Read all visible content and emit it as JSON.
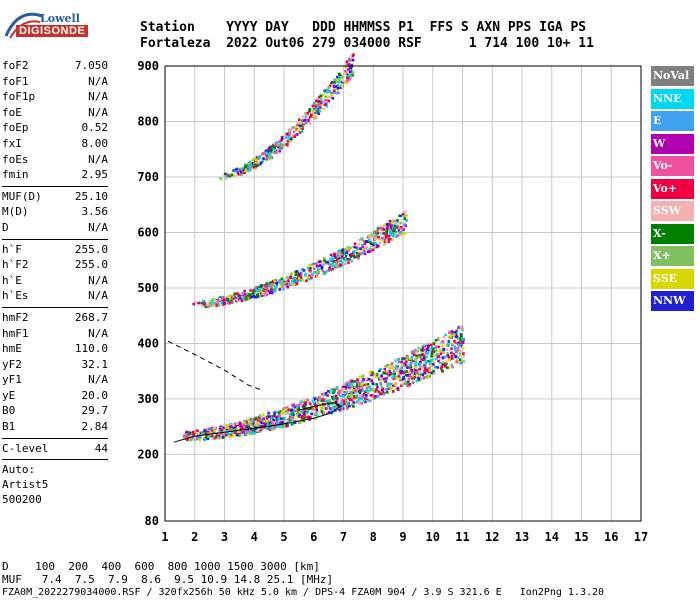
{
  "logo": {
    "line1": "Lowell",
    "line2": "DIGISONDE"
  },
  "header": {
    "line1": "Station    YYYY DAY   DDD HHMMSS P1  FFS S AXN PPS IGA PS",
    "line2": "Fortaleza  2022 Out06 279 034000 RSF      1 714 100 10+ 11"
  },
  "params": {
    "group1": [
      {
        "name": "foF2",
        "value": "7.050"
      },
      {
        "name": "foF1",
        "value": "N/A"
      },
      {
        "name": "foF1p",
        "value": "N/A"
      },
      {
        "name": "foE",
        "value": "N/A"
      },
      {
        "name": "foEp",
        "value": "0.52"
      },
      {
        "name": "fxI",
        "value": "8.00"
      },
      {
        "name": "foEs",
        "value": "N/A"
      },
      {
        "name": "fmin",
        "value": "2.95"
      }
    ],
    "group2": [
      {
        "name": "MUF(D)",
        "value": "25.10"
      },
      {
        "name": "M(D)",
        "value": "3.56"
      },
      {
        "name": "D",
        "value": "N/A"
      }
    ],
    "group3": [
      {
        "name": "h`F",
        "value": "255.0"
      },
      {
        "name": "h`F2",
        "value": "255.0"
      },
      {
        "name": "h`E",
        "value": "N/A"
      },
      {
        "name": "h`Es",
        "value": "N/A"
      }
    ],
    "group4": [
      {
        "name": "hmF2",
        "value": "268.7"
      },
      {
        "name": "hmF1",
        "value": "N/A"
      },
      {
        "name": "hmE",
        "value": "110.0"
      },
      {
        "name": "yF2",
        "value": "32.1"
      },
      {
        "name": "yF1",
        "value": "N/A"
      },
      {
        "name": "yE",
        "value": "20.0"
      },
      {
        "name": "B0",
        "value": "29.7"
      },
      {
        "name": "B1",
        "value": "2.84"
      }
    ],
    "clevel": {
      "name": "C-level",
      "value": "44"
    },
    "auto": [
      "Auto:",
      "Artist5",
      "500200"
    ]
  },
  "legend": [
    {
      "label": "NoVal",
      "color": "#808080"
    },
    {
      "label": "NNE",
      "color": "#00d8f0"
    },
    {
      "label": "E",
      "color": "#3fa0f0"
    },
    {
      "label": "W",
      "color": "#b000b0"
    },
    {
      "label": "Vo-",
      "color": "#f050a0"
    },
    {
      "label": "Vo+",
      "color": "#f00040"
    },
    {
      "label": "SSW",
      "color": "#f4b0b0"
    },
    {
      "label": "X-",
      "color": "#008000"
    },
    {
      "label": "X+",
      "color": "#80c060"
    },
    {
      "label": "SSE",
      "color": "#d8d800"
    },
    {
      "label": "NNW",
      "color": "#2020d0"
    }
  ],
  "footer": {
    "line1": "D    100  200  400  600  800 1000 1500 3000 [km]",
    "line2": "MUF   7.4  7.5  7.9  8.6  9.5 10.9 14.8 25.1 [MHz]",
    "line3": "FZA0M_2022279034000.RSF / 320fx256h 50 kHz 5.0 km / DPS-4 FZA0M 904 / 3.9 S 321.6 E   Ion2Png 1.3.20"
  },
  "chart_data": {
    "type": "scatter",
    "xlabel": "",
    "ylabel": "",
    "xlim": [
      1,
      17
    ],
    "ylim": [
      80,
      900
    ],
    "x_ticks": [
      1,
      2,
      3,
      4,
      5,
      6,
      7,
      8,
      9,
      10,
      11,
      12,
      13,
      14,
      15,
      16,
      17
    ],
    "y_ticks": [
      80,
      200,
      300,
      400,
      500,
      600,
      700,
      800,
      900
    ],
    "grid": true,
    "traces": [
      {
        "name": "O-trace profile",
        "style": "solid",
        "points": [
          [
            1.3,
            222
          ],
          [
            2,
            233
          ],
          [
            3,
            240
          ],
          [
            4,
            247
          ],
          [
            5,
            255
          ],
          [
            6,
            265
          ],
          [
            6.6,
            275
          ],
          [
            6.9,
            287
          ],
          [
            6.7,
            293
          ],
          [
            6.3,
            290
          ],
          [
            5.5,
            280
          ]
        ]
      },
      {
        "name": "extrapolated profile",
        "style": "dashed",
        "points": [
          [
            1.1,
            404
          ],
          [
            2,
            380
          ],
          [
            3,
            352
          ],
          [
            3.8,
            325
          ],
          [
            4.3,
            315
          ]
        ]
      }
    ],
    "echo_bands": [
      {
        "name": "F1 hop",
        "x_range": [
          1.6,
          11
        ],
        "h_start": 232,
        "h_end": 390
      },
      {
        "name": "F2 hop",
        "x_range": [
          1.9,
          9.1
        ],
        "h_start": 470,
        "h_end": 615
      },
      {
        "name": "F3 hop",
        "x_range": [
          2.8,
          7.3
        ],
        "h_start": 700,
        "h_end": 900
      }
    ]
  }
}
